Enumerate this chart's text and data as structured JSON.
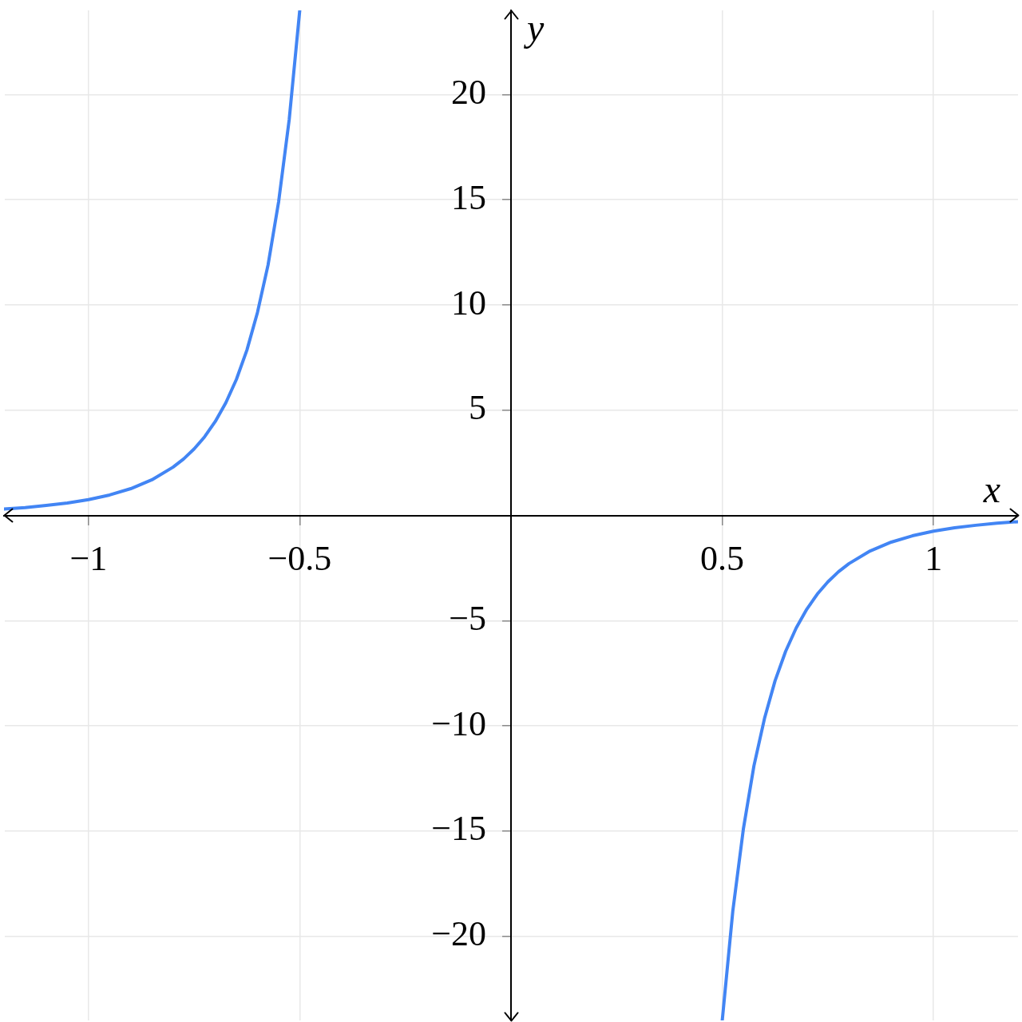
{
  "chart_data": {
    "type": "line",
    "x": [
      -1.2,
      -1.15,
      -1.1,
      -1.05,
      -1,
      -0.95,
      -0.9,
      -0.85,
      -0.8,
      -0.775,
      -0.75,
      -0.725,
      -0.7,
      -0.675,
      -0.65,
      -0.625,
      -0.6,
      -0.575,
      -0.55,
      -0.525,
      -0.5,
      0,
      0.5,
      0.525,
      0.55,
      0.575,
      0.6,
      0.625,
      0.65,
      0.675,
      0.7,
      0.725,
      0.75,
      0.775,
      0.8,
      0.85,
      0.9,
      0.95,
      1,
      1.05,
      1.1,
      1.15,
      1.2
    ],
    "values": [
      0.3,
      0.37,
      0.47,
      0.59,
      0.75,
      0.97,
      1.27,
      1.69,
      2.29,
      2.68,
      3.16,
      3.74,
      4.46,
      5.35,
      6.46,
      7.86,
      9.65,
      11.9,
      14.9,
      18.8,
      24,
      null,
      -24,
      -18.8,
      -14.9,
      -11.9,
      -9.65,
      -7.86,
      -6.46,
      -5.35,
      -4.46,
      -3.74,
      -3.16,
      -2.68,
      -2.29,
      -1.69,
      -1.27,
      -0.97,
      -0.75,
      -0.59,
      -0.47,
      -0.37,
      -0.3
    ],
    "color": "#4285f4",
    "xlabel": "x",
    "ylabel": "y",
    "xlim": [
      -1.2,
      1.2
    ],
    "ylim": [
      -24,
      24
    ],
    "xticks": [
      {
        "value": -1,
        "label": "−1"
      },
      {
        "value": -0.5,
        "label": "−0.5"
      },
      0.5,
      1
    ],
    "yticks": [
      {
        "value": -20,
        "label": "−20"
      },
      {
        "value": -15,
        "label": "−15"
      },
      {
        "value": -10,
        "label": "−10"
      },
      {
        "value": -5,
        "label": "−5"
      },
      5,
      10,
      15,
      20
    ],
    "grid": true
  }
}
